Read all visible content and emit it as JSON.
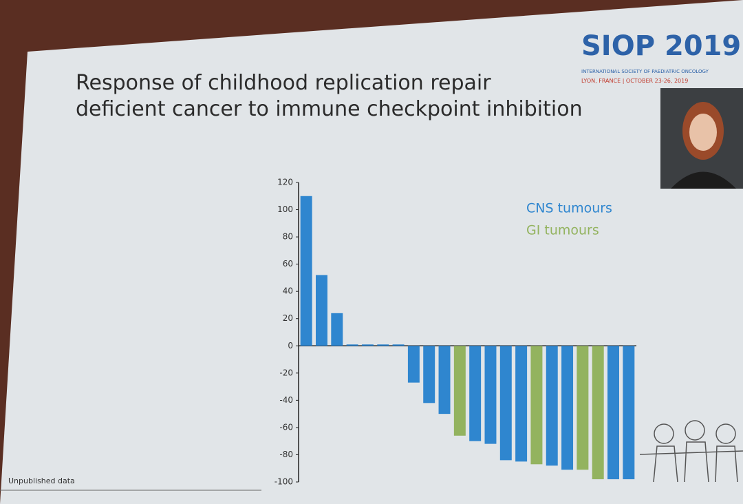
{
  "slide": {
    "logo": "SIOP 2019",
    "society": "INTERNATIONAL SOCIETY OF PAEDIATRIC ONCOLOGY",
    "location": "LYON, FRANCE | OCTOBER 23-26, 2019",
    "footnote": "Unpublished data"
  },
  "chart_data": {
    "type": "bar",
    "title": "Response of childhood replication repair deficient cancer to immune checkpoint inhibition",
    "categories": [
      null,
      null,
      null,
      null,
      null,
      null,
      null,
      null,
      null,
      null,
      null,
      null,
      null,
      null,
      null,
      null,
      null,
      null,
      null,
      null,
      null,
      null
    ],
    "series": [
      {
        "name": "CNS tumours",
        "color": "#2f86cf",
        "values": [
          110,
          52,
          24,
          0,
          0,
          0,
          0,
          -27,
          -42,
          -50,
          null,
          -70,
          -72,
          -84,
          -85,
          null,
          -88,
          -91,
          null,
          null,
          -98,
          -98
        ]
      },
      {
        "name": "GI tumours",
        "color": "#93b35f",
        "values": [
          null,
          null,
          null,
          null,
          null,
          null,
          null,
          null,
          null,
          null,
          -66,
          null,
          null,
          null,
          null,
          -87,
          null,
          null,
          -91,
          -98,
          null,
          null
        ]
      }
    ],
    "ylim": [
      -100,
      120
    ],
    "yticks": [
      -100,
      -80,
      -60,
      -40,
      -20,
      0,
      20,
      40,
      60,
      80,
      100,
      120
    ],
    "legend": "upper right",
    "stacked": false
  }
}
